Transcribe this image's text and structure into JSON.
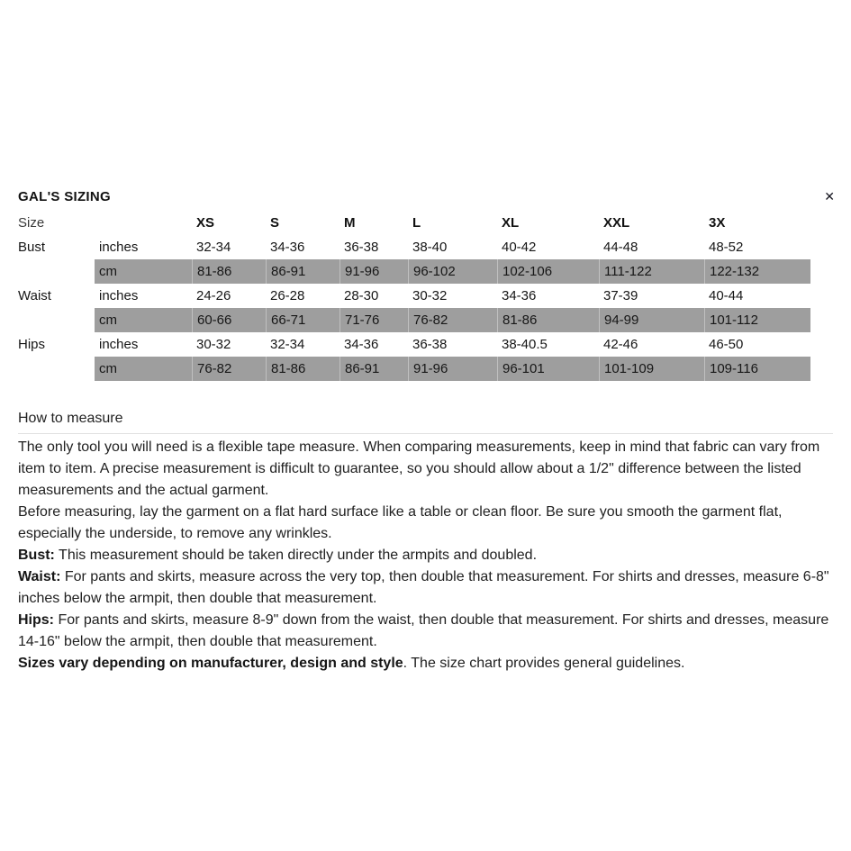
{
  "page": {
    "title": "GAL'S SIZING",
    "close_icon": "✕"
  },
  "size_chart": {
    "header": {
      "size_label": "Size",
      "sizes": [
        "XS",
        "S",
        "M",
        "L",
        "XL",
        "XXL",
        "3X"
      ]
    },
    "rows": [
      {
        "label": "Bust",
        "unit": "inches",
        "shaded": false,
        "values": [
          "32-34",
          "34-36",
          "36-38",
          "38-40",
          "40-42",
          "44-48",
          "48-52"
        ]
      },
      {
        "label": "",
        "unit": "cm",
        "shaded": true,
        "values": [
          "81-86",
          "86-91",
          "91-96",
          "96-102",
          "102-106",
          "111-122",
          "122-132"
        ]
      },
      {
        "label": "Waist",
        "unit": "inches",
        "shaded": false,
        "values": [
          "24-26",
          "26-28",
          "28-30",
          "30-32",
          "34-36",
          "37-39",
          "40-44"
        ]
      },
      {
        "label": "",
        "unit": "cm",
        "shaded": true,
        "values": [
          "60-66",
          "66-71",
          "71-76",
          "76-82",
          "81-86",
          "94-99",
          "101-112"
        ]
      },
      {
        "label": "Hips",
        "unit": "inches",
        "shaded": false,
        "values": [
          "30-32",
          "32-34",
          "34-36",
          "36-38",
          "38-40.5",
          "42-46",
          "46-50"
        ]
      },
      {
        "label": "",
        "unit": "cm",
        "shaded": true,
        "values": [
          "76-82",
          "81-86",
          "86-91",
          "91-96",
          "96-101",
          "101-109",
          "109-116"
        ]
      }
    ]
  },
  "how_to_measure": {
    "heading": "How to measure",
    "paragraphs": [
      {
        "bold": "",
        "text": "The only tool you will need is a flexible tape measure. When comparing measurements, keep in mind that fabric can vary from item to item. A precise measurement is difficult to guarantee, so you should allow about a 1/2\" difference between the listed measurements and the actual garment."
      },
      {
        "bold": "",
        "text": "Before measuring, lay the garment on a flat hard surface like a table or clean floor. Be sure you smooth the garment flat, especially the underside, to remove any wrinkles."
      },
      {
        "bold": "Bust:",
        "text": " This measurement should be taken directly under the armpits and doubled."
      },
      {
        "bold": "Waist:",
        "text": " For pants and skirts, measure across the very top, then double that measurement. For shirts and dresses, measure 6-8\" inches below the armpit, then double that measurement."
      },
      {
        "bold": "Hips:",
        "text": " For pants and skirts, measure 8-9\" down from the waist, then double that measurement. For shirts and dresses, measure 14-16\" below the armpit, then double that measurement."
      },
      {
        "bold": "Sizes vary depending on manufacturer, design and style",
        "text": ". The size chart provides general guidelines."
      }
    ]
  },
  "colors": {
    "shaded_row": "#9e9e9e",
    "divider": "#e0e0e0",
    "text": "#1c1c1c"
  }
}
